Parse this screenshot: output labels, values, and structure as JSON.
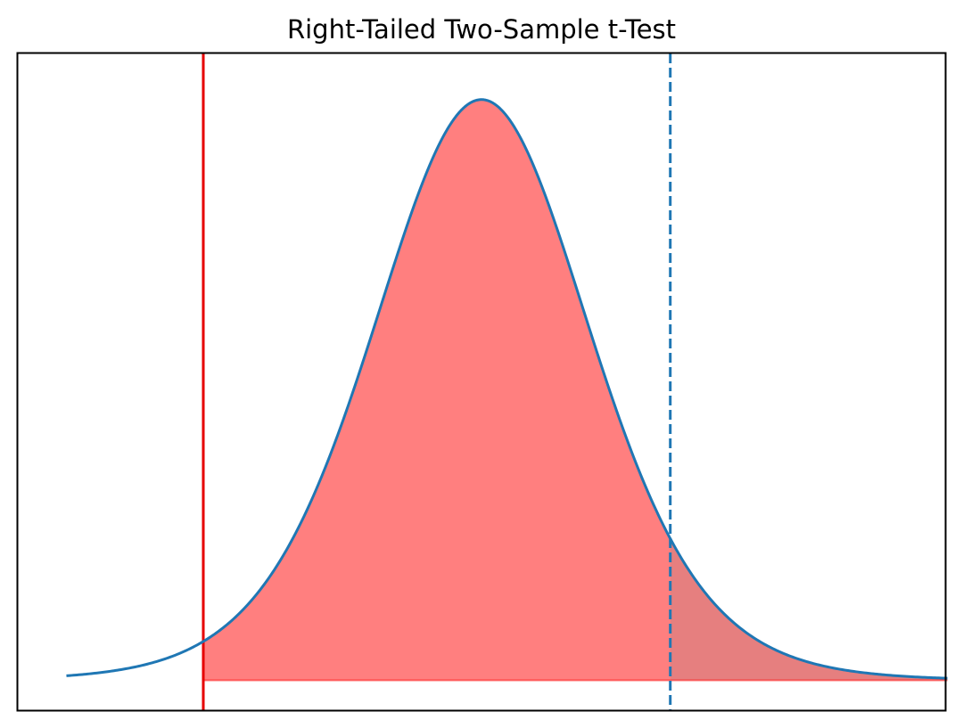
{
  "chart_data": {
    "type": "area",
    "title": "Right-Tailed Two-Sample t-Test",
    "xlabel": "",
    "ylabel": "",
    "xlim": [
      -4.2,
      4.2
    ],
    "ylim": [
      -0.02,
      0.42
    ],
    "grid": false,
    "axis_ticks_visible": false,
    "series": [
      {
        "distribution": "t",
        "df": 10,
        "x_range": [
          -3.76,
          4.22
        ],
        "color": "#1f77b4"
      }
    ],
    "shaded_regions": [
      {
        "from": -2.52,
        "to": 4.22,
        "fill": "#ff0000",
        "opacity": 0.5
      },
      {
        "from": 1.71,
        "to": 4.22,
        "fill": "#808080",
        "opacity": 0.2
      }
    ],
    "vertical_lines": [
      {
        "x": -2.52,
        "color": "#e60000",
        "style": "solid"
      },
      {
        "x": 1.71,
        "color": "#1f77b4",
        "style": "dashed"
      }
    ]
  }
}
